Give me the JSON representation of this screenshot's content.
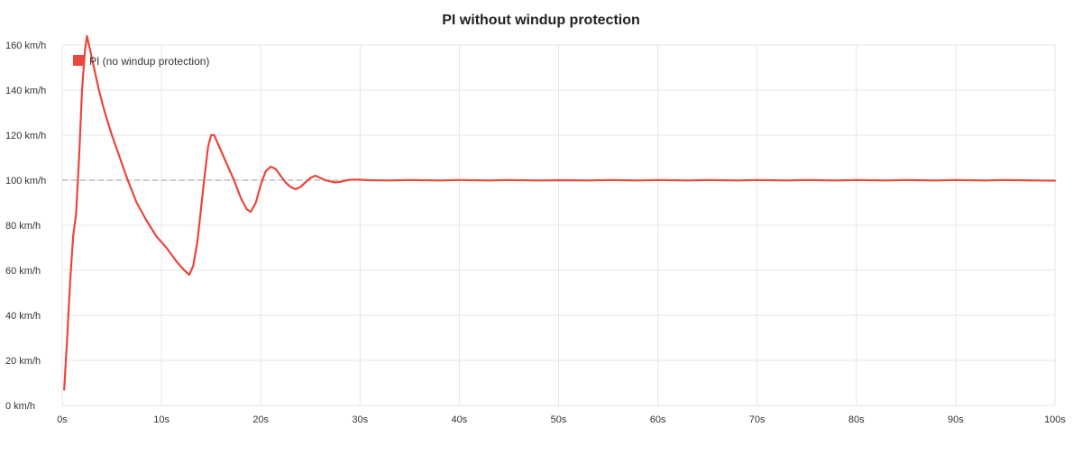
{
  "chart_data": {
    "type": "line",
    "title": "PI without windup protection",
    "xlabel": "",
    "ylabel": "",
    "x_unit": "s",
    "y_unit": "km/h",
    "xlim": [
      0,
      100
    ],
    "ylim": [
      0,
      160
    ],
    "x_ticks": [
      0,
      10,
      20,
      30,
      40,
      50,
      60,
      70,
      80,
      90,
      100
    ],
    "x_tick_labels": [
      "0s",
      "10s",
      "20s",
      "30s",
      "40s",
      "50s",
      "60s",
      "70s",
      "80s",
      "90s",
      "100s"
    ],
    "y_ticks": [
      0,
      20,
      40,
      60,
      80,
      100,
      120,
      140,
      160
    ],
    "y_tick_labels": [
      "0 km/h",
      "20 km/h",
      "40 km/h",
      "60 km/h",
      "80 km/h",
      "100 km/h",
      "120 km/h",
      "140 km/h",
      "160 km/h"
    ],
    "grid": true,
    "legend_position": "top-left",
    "reference_line": {
      "y": 100,
      "style": "dashed",
      "color": "#999999"
    },
    "series": [
      {
        "name": "PI (no windup protection)",
        "color": "#e8473b",
        "points": [
          [
            0.2,
            7
          ],
          [
            0.5,
            30
          ],
          [
            0.8,
            55
          ],
          [
            1.1,
            75
          ],
          [
            1.4,
            85
          ],
          [
            1.7,
            110
          ],
          [
            2.0,
            140
          ],
          [
            2.3,
            158
          ],
          [
            2.5,
            164
          ],
          [
            2.8,
            158
          ],
          [
            3.2,
            150
          ],
          [
            3.7,
            140
          ],
          [
            4.3,
            130
          ],
          [
            5.0,
            120
          ],
          [
            5.8,
            110
          ],
          [
            6.6,
            100
          ],
          [
            7.5,
            90
          ],
          [
            8.5,
            82
          ],
          [
            9.5,
            75
          ],
          [
            10.5,
            70
          ],
          [
            11.5,
            64
          ],
          [
            12.3,
            60
          ],
          [
            12.8,
            58
          ],
          [
            13.2,
            62
          ],
          [
            13.6,
            72
          ],
          [
            14.0,
            88
          ],
          [
            14.3,
            100
          ],
          [
            14.7,
            115
          ],
          [
            15.0,
            120
          ],
          [
            15.3,
            120
          ],
          [
            15.8,
            115
          ],
          [
            16.5,
            108
          ],
          [
            17.3,
            100
          ],
          [
            18.0,
            92
          ],
          [
            18.6,
            87
          ],
          [
            19.0,
            86
          ],
          [
            19.5,
            90
          ],
          [
            20.0,
            98
          ],
          [
            20.5,
            104
          ],
          [
            21.0,
            106
          ],
          [
            21.5,
            105
          ],
          [
            22.0,
            102
          ],
          [
            22.5,
            99
          ],
          [
            23.0,
            97
          ],
          [
            23.5,
            96
          ],
          [
            24.0,
            97
          ],
          [
            24.5,
            99
          ],
          [
            25.0,
            101
          ],
          [
            25.5,
            102
          ],
          [
            26.0,
            101
          ],
          [
            26.5,
            100
          ],
          [
            27.0,
            99.5
          ],
          [
            27.5,
            99
          ],
          [
            28.0,
            99.3
          ],
          [
            28.5,
            99.8
          ],
          [
            29.0,
            100.2
          ],
          [
            29.5,
            100.3
          ],
          [
            30.0,
            100.2
          ],
          [
            31.0,
            100
          ],
          [
            33.0,
            99.9
          ],
          [
            35.0,
            100.1
          ],
          [
            38.0,
            99.9
          ],
          [
            40.0,
            100.1
          ],
          [
            43.0,
            99.9
          ],
          [
            45.0,
            100.1
          ],
          [
            48.0,
            99.9
          ],
          [
            50.0,
            100
          ],
          [
            53.0,
            99.9
          ],
          [
            55.0,
            100.1
          ],
          [
            58.0,
            99.9
          ],
          [
            60.0,
            100.1
          ],
          [
            63.0,
            99.9
          ],
          [
            65.0,
            100.1
          ],
          [
            68.0,
            99.9
          ],
          [
            70.0,
            100.1
          ],
          [
            73.0,
            99.9
          ],
          [
            75.0,
            100.1
          ],
          [
            78.0,
            99.9
          ],
          [
            80.0,
            100.1
          ],
          [
            83.0,
            99.9
          ],
          [
            85.0,
            100.1
          ],
          [
            88.0,
            99.9
          ],
          [
            90.0,
            100.1
          ],
          [
            93.0,
            99.9
          ],
          [
            95.0,
            100.1
          ],
          [
            98.0,
            99.9
          ],
          [
            100.0,
            99.8
          ]
        ]
      }
    ]
  }
}
